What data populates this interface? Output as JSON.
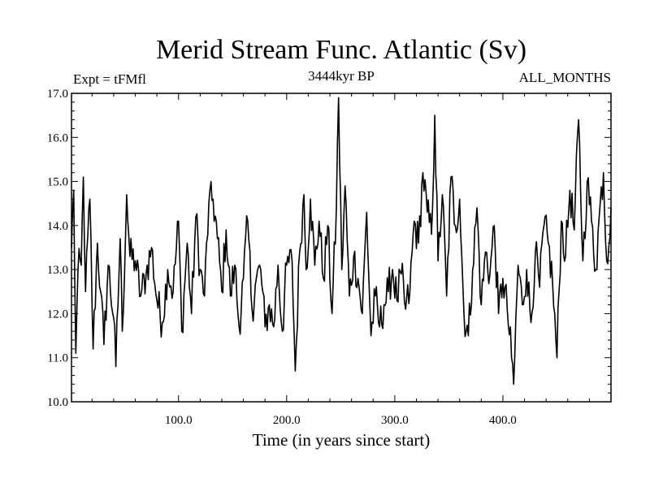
{
  "chart_data": {
    "type": "line",
    "title": "Merid Stream Func. Atlantic (Sv)",
    "subtitle_left": "Expt = tFMfl",
    "subtitle_center": "3444kyr BP",
    "subtitle_right": "ALL_MONTHS",
    "xlabel": "Time (in years since start)",
    "ylabel": "",
    "xlim": [
      1,
      500
    ],
    "ylim": [
      10.0,
      17.0
    ],
    "xticks": [
      100,
      200,
      300,
      400
    ],
    "xtick_labels": [
      "100.0",
      "200.0",
      "300.0",
      "400.0"
    ],
    "yticks": [
      10,
      11,
      12,
      13,
      14,
      15,
      16,
      17
    ],
    "ytick_labels": [
      "10.0",
      "11.0",
      "12.0",
      "13.0",
      "14.0",
      "15.0",
      "16.0",
      "17.0"
    ],
    "grid": false,
    "series": [
      {
        "name": "Merid Stream Func. Atlantic",
        "color": "#000000",
        "x_start": 1,
        "x_step": 1,
        "keypoints": [
          [
            1,
            13.5
          ],
          [
            3,
            14.8
          ],
          [
            5,
            11.1
          ],
          [
            7,
            13.0
          ],
          [
            10,
            13.1
          ],
          [
            12,
            15.1
          ],
          [
            14,
            12.5
          ],
          [
            18,
            14.6
          ],
          [
            21,
            11.2
          ],
          [
            25,
            13.6
          ],
          [
            28,
            12.5
          ],
          [
            31,
            11.3
          ],
          [
            35,
            13.1
          ],
          [
            40,
            11.9
          ],
          [
            42,
            10.8
          ],
          [
            46,
            13.7
          ],
          [
            48,
            11.6
          ],
          [
            52,
            14.7
          ],
          [
            55,
            13.3
          ],
          [
            60,
            13.2
          ],
          [
            65,
            12.4
          ],
          [
            70,
            12.9
          ],
          [
            75,
            13.5
          ],
          [
            80,
            12.3
          ],
          [
            85,
            11.8
          ],
          [
            90,
            13.0
          ],
          [
            95,
            12.5
          ],
          [
            100,
            14.1
          ],
          [
            103,
            11.6
          ],
          [
            108,
            13.6
          ],
          [
            112,
            12.0
          ],
          [
            116,
            14.2
          ],
          [
            120,
            13.0
          ],
          [
            124,
            12.4
          ],
          [
            128,
            14.5
          ],
          [
            132,
            14.6
          ],
          [
            136,
            13.7
          ],
          [
            140,
            12.5
          ],
          [
            144,
            13.9
          ],
          [
            148,
            12.4
          ],
          [
            152,
            13.1
          ],
          [
            156,
            11.7
          ],
          [
            160,
            12.8
          ],
          [
            164,
            14.1
          ],
          [
            168,
            12.1
          ],
          [
            172,
            12.8
          ],
          [
            176,
            13.0
          ],
          [
            180,
            11.7
          ],
          [
            184,
            12.2
          ],
          [
            188,
            11.7
          ],
          [
            192,
            13.1
          ],
          [
            196,
            11.6
          ],
          [
            200,
            13.1
          ],
          [
            205,
            13.2
          ],
          [
            208,
            10.7
          ],
          [
            212,
            13.4
          ],
          [
            216,
            14.7
          ],
          [
            218,
            13.0
          ],
          [
            222,
            14.6
          ],
          [
            226,
            13.1
          ],
          [
            230,
            14.1
          ],
          [
            234,
            12.8
          ],
          [
            238,
            14.0
          ],
          [
            242,
            12.0
          ],
          [
            246,
            14.4
          ],
          [
            248,
            16.9
          ],
          [
            251,
            13.0
          ],
          [
            254,
            14.9
          ],
          [
            258,
            12.4
          ],
          [
            262,
            13.3
          ],
          [
            266,
            12.8
          ],
          [
            270,
            12.0
          ],
          [
            274,
            14.3
          ],
          [
            278,
            11.5
          ],
          [
            282,
            12.4
          ],
          [
            286,
            11.7
          ],
          [
            290,
            12.2
          ],
          [
            294,
            12.5
          ],
          [
            298,
            13.0
          ],
          [
            302,
            12.3
          ],
          [
            306,
            12.9
          ],
          [
            310,
            12.1
          ],
          [
            314,
            12.5
          ],
          [
            318,
            14.1
          ],
          [
            322,
            13.6
          ],
          [
            326,
            15.2
          ],
          [
            330,
            14.3
          ],
          [
            334,
            13.8
          ],
          [
            337,
            16.5
          ],
          [
            340,
            13.2
          ],
          [
            344,
            14.7
          ],
          [
            348,
            12.4
          ],
          [
            352,
            15.1
          ],
          [
            356,
            14.0
          ],
          [
            360,
            14.6
          ],
          [
            364,
            12.0
          ],
          [
            368,
            11.5
          ],
          [
            372,
            13.0
          ],
          [
            376,
            14.4
          ],
          [
            380,
            12.2
          ],
          [
            384,
            13.4
          ],
          [
            388,
            12.9
          ],
          [
            392,
            14.0
          ],
          [
            396,
            12.0
          ],
          [
            400,
            12.8
          ],
          [
            404,
            12.1
          ],
          [
            408,
            11.0
          ],
          [
            410,
            10.4
          ],
          [
            414,
            13.1
          ],
          [
            418,
            12.2
          ],
          [
            422,
            13.0
          ],
          [
            426,
            11.8
          ],
          [
            430,
            13.4
          ],
          [
            434,
            12.6
          ],
          [
            438,
            14.0
          ],
          [
            442,
            13.6
          ],
          [
            446,
            12.7
          ],
          [
            450,
            11.0
          ],
          [
            454,
            14.1
          ],
          [
            458,
            13.3
          ],
          [
            462,
            14.8
          ],
          [
            466,
            13.9
          ],
          [
            470,
            16.4
          ],
          [
            474,
            13.2
          ],
          [
            478,
            15.0
          ],
          [
            482,
            14.1
          ],
          [
            486,
            13.0
          ],
          [
            490,
            14.5
          ],
          [
            493,
            15.2
          ],
          [
            496,
            13.2
          ],
          [
            500,
            14.4
          ]
        ]
      }
    ]
  }
}
